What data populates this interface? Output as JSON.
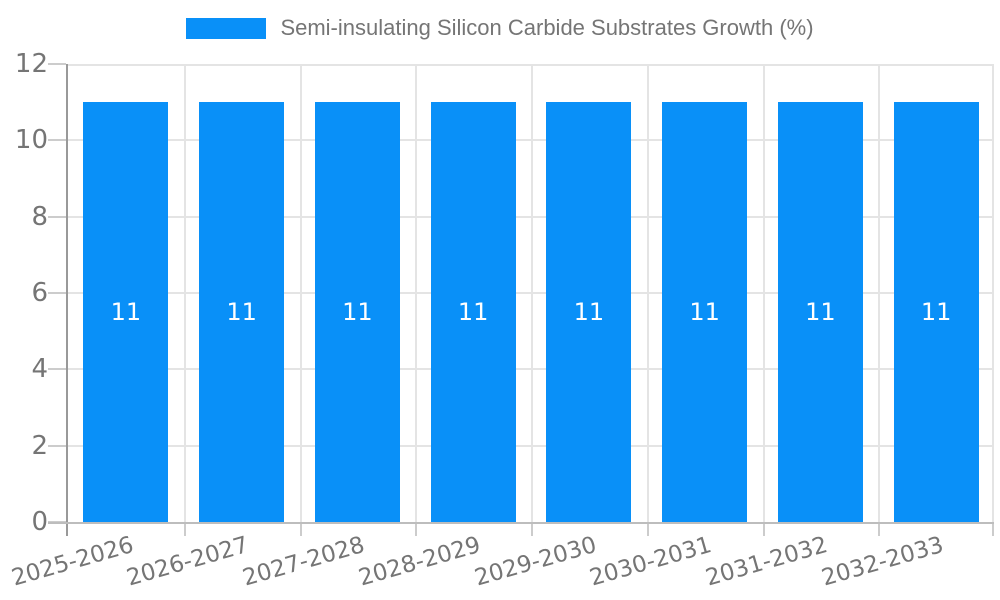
{
  "chart_data": {
    "type": "bar",
    "title": "Semi-insulating Silicon Carbide Substrates Growth (%)",
    "categories": [
      "2025-2026",
      "2026-2027",
      "2027-2028",
      "2028-2029",
      "2029-2030",
      "2030-2031",
      "2031-2032",
      "2032-2033"
    ],
    "values": [
      11,
      11,
      11,
      11,
      11,
      11,
      11,
      11
    ],
    "xlabel": "",
    "ylabel": "",
    "ylim": [
      0,
      12
    ],
    "y_ticks": [
      0,
      2,
      4,
      6,
      8,
      10,
      12
    ],
    "grid": true,
    "legend_position": "top",
    "bar_color": "#0990f8",
    "label_color": "#757575",
    "value_label_color": "#ffffff"
  }
}
